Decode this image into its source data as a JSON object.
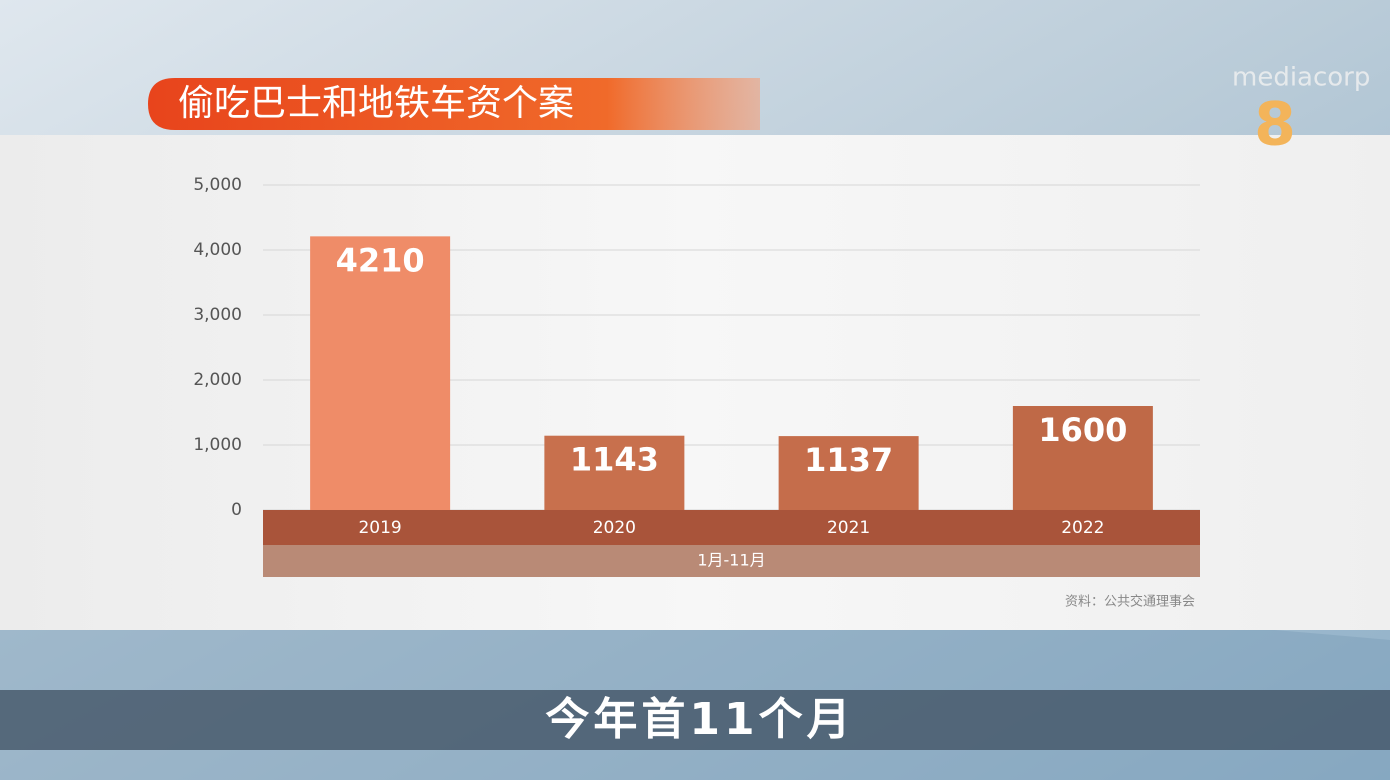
{
  "chart_data": {
    "type": "bar",
    "title": "偷吃巴士和地铁车资个案",
    "categories": [
      "2019",
      "2020",
      "2021",
      "2022"
    ],
    "values": [
      4210,
      1143,
      1137,
      1600
    ],
    "colors": [
      "#ef8c68",
      "#c8704d",
      "#c56d4b",
      "#bf6947"
    ],
    "ylim": [
      0,
      5000
    ],
    "yticks": [
      0,
      {
        "value": 1000,
        "label": "1,000"
      },
      {
        "value": 2000,
        "label": "2,000"
      },
      {
        "value": 3000,
        "label": "3,000"
      },
      {
        "value": 4000,
        "label": "4,000"
      },
      {
        "value": 5000,
        "label": "5,000"
      }
    ],
    "grid": true,
    "period_label": "1月-11月",
    "source": "资料：公共交通理事会"
  },
  "caption": "今年首11个月",
  "logo": {
    "brand": "mediacorp",
    "channel": "8"
  }
}
